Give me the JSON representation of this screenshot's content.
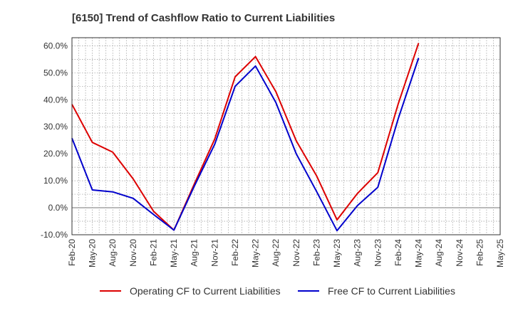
{
  "chart_data": {
    "type": "line",
    "title": "[6150]  Trend of Cashflow Ratio to Current Liabilities",
    "xlabel": "",
    "ylabel": "",
    "ylim": [
      -10,
      63
    ],
    "yticks": [
      "60.0%",
      "50.0%",
      "40.0%",
      "30.0%",
      "20.0%",
      "10.0%",
      "0.0%",
      "-10.0%"
    ],
    "ytick_values": [
      60,
      50,
      40,
      30,
      20,
      10,
      0,
      -10
    ],
    "categories": [
      "Feb-20",
      "May-20",
      "Aug-20",
      "Nov-20",
      "Feb-21",
      "May-21",
      "Aug-21",
      "Nov-21",
      "Feb-22",
      "May-22",
      "Aug-22",
      "Nov-22",
      "Feb-23",
      "May-23",
      "Aug-23",
      "Nov-23",
      "Feb-24",
      "May-24",
      "Aug-24",
      "Nov-24",
      "Feb-25",
      "May-25"
    ],
    "grid": true,
    "legend_position": "bottom",
    "series": [
      {
        "name": "Operating CF to Current Liabilities",
        "color": "#dd0000",
        "values": [
          38.3,
          24.2,
          20.6,
          10.7,
          -1.3,
          -8.3,
          8.8,
          25.4,
          48.5,
          56.0,
          43.0,
          24.8,
          11.8,
          -4.5,
          5.3,
          13.0,
          38.5,
          61.0,
          null,
          null,
          null,
          null
        ]
      },
      {
        "name": "Free CF to Current Liabilities",
        "color": "#0000cc",
        "values": [
          25.8,
          6.6,
          5.9,
          3.5,
          -2.5,
          -8.3,
          8.0,
          23.5,
          45.0,
          52.5,
          39.0,
          20.0,
          6.0,
          -8.5,
          0.8,
          7.6,
          33.0,
          55.5,
          null,
          null,
          null,
          null
        ]
      }
    ]
  }
}
